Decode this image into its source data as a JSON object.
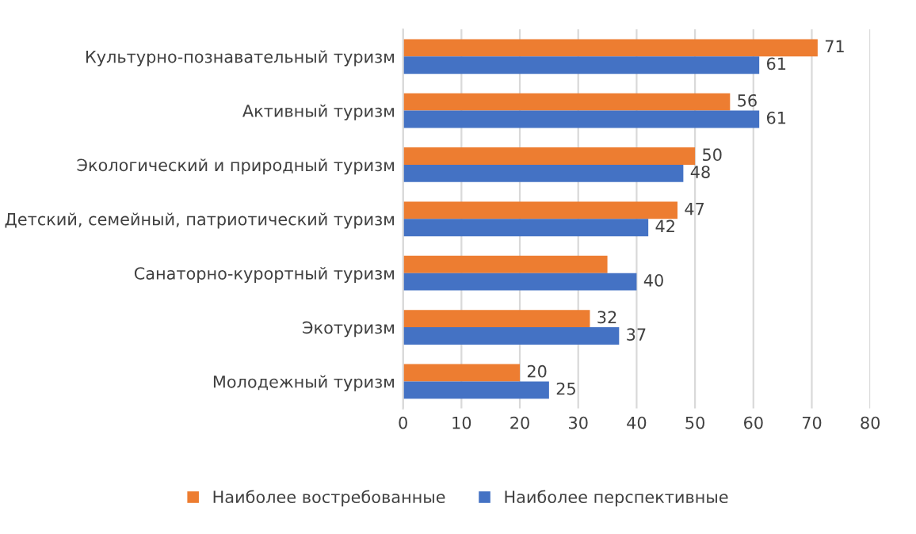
{
  "chart_data": {
    "type": "bar",
    "orientation": "horizontal",
    "categories": [
      "Культурно-познавательный туризм",
      "Активный туризм",
      "Экологический и природный туризм",
      "Детский, семейный, патриотический туризм",
      "Санаторно-курортный туризм",
      "Экотуризм",
      "Молодежный туризм"
    ],
    "series": [
      {
        "name": "Наиболее востребованные",
        "color": "#ed7d31",
        "values": [
          71,
          56,
          50,
          47,
          35,
          32,
          20
        ],
        "value_labels": [
          "71",
          "56",
          "50",
          "47",
          null,
          "32",
          "20"
        ]
      },
      {
        "name": "Наиболее перспективные",
        "color": "#4472c4",
        "values": [
          61,
          61,
          48,
          42,
          40,
          37,
          25
        ],
        "value_labels": [
          "61",
          "61",
          "48",
          "42",
          "40",
          "37",
          "25"
        ]
      }
    ],
    "xlim": [
      0,
      80
    ],
    "xticks": [
      0,
      10,
      20,
      30,
      40,
      50,
      60,
      70,
      80
    ],
    "grid": "x",
    "legend": "bottom"
  }
}
